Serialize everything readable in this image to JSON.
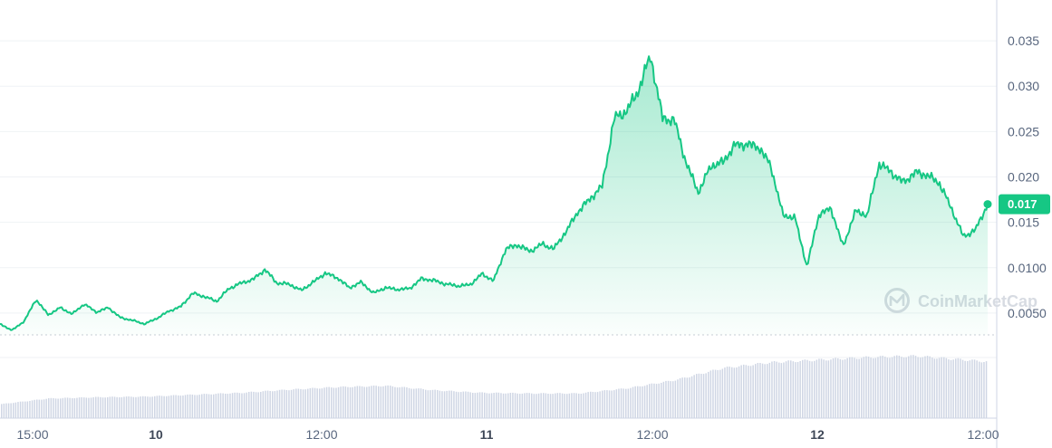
{
  "chart_data": {
    "type": "area",
    "title": "",
    "xlabel": "",
    "ylabel": "",
    "ylim": [
      0.0026,
      0.0385
    ],
    "y_ticks": [
      0.005,
      0.01,
      0.015,
      0.02,
      0.025,
      0.03,
      0.035
    ],
    "y_tick_labels": [
      "0.0050",
      "0.0100",
      "0.015",
      "0.020",
      "0.025",
      "0.030",
      "0.035"
    ],
    "x_ticks": [
      {
        "label": "15:00",
        "bold": false
      },
      {
        "label": "10",
        "bold": true
      },
      {
        "label": "12:00",
        "bold": false
      },
      {
        "label": "11",
        "bold": true
      },
      {
        "label": "12:00",
        "bold": false
      },
      {
        "label": "12",
        "bold": true
      },
      {
        "label": "12:00",
        "bold": false
      }
    ],
    "grid": true,
    "colors": {
      "line": "#16c784",
      "area_top": "#16c784",
      "volume": "#cfd6e4",
      "grid": "#eff2f5",
      "text": "#58667e",
      "baseline_dotted": "#c7ccd5"
    },
    "current_price": {
      "value": 0.017,
      "label": "0.017"
    },
    "watermark": "CoinMarketCap",
    "price_series": {
      "name": "",
      "x_hours": [
        0,
        1,
        2,
        3,
        4,
        5,
        6,
        7,
        8,
        9,
        10,
        11,
        12,
        13,
        14,
        15,
        16,
        17,
        18,
        19,
        20,
        21,
        22,
        23,
        24,
        25,
        26,
        27,
        28,
        29,
        30,
        31,
        32,
        33,
        34,
        35,
        36,
        37,
        38,
        39,
        40,
        41,
        42,
        43,
        44,
        45,
        46,
        47,
        48,
        49,
        50,
        51,
        52,
        53,
        54,
        55,
        56,
        57,
        58,
        59,
        60,
        61,
        62,
        63,
        64,
        65,
        66,
        67,
        68,
        69,
        70,
        71,
        72,
        73,
        74,
        75,
        76,
        77,
        78,
        79,
        80,
        81,
        82
      ],
      "values": [
        0.0038,
        0.0031,
        0.0041,
        0.0065,
        0.0048,
        0.0056,
        0.0049,
        0.006,
        0.0051,
        0.0056,
        0.0045,
        0.0042,
        0.0038,
        0.0044,
        0.0052,
        0.0057,
        0.0072,
        0.0068,
        0.0063,
        0.0077,
        0.0083,
        0.0087,
        0.0098,
        0.0083,
        0.0082,
        0.0075,
        0.0084,
        0.0094,
        0.0089,
        0.0078,
        0.0084,
        0.0072,
        0.0078,
        0.0076,
        0.0077,
        0.0088,
        0.0086,
        0.0082,
        0.008,
        0.0081,
        0.0093,
        0.0086,
        0.0121,
        0.0125,
        0.0118,
        0.0126,
        0.0121,
        0.014,
        0.0162,
        0.0176,
        0.019,
        0.0265,
        0.0272,
        0.0295,
        0.0334,
        0.0265,
        0.0262,
        0.0214,
        0.0183,
        0.0212,
        0.0216,
        0.0235,
        0.0236,
        0.0233,
        0.0212,
        0.0158,
        0.0155,
        0.0101,
        0.0159,
        0.0165,
        0.0123,
        0.0162,
        0.0158,
        0.0215,
        0.0205,
        0.0194,
        0.0205,
        0.0202,
        0.0193,
        0.0165,
        0.0134,
        0.0142,
        0.017
      ]
    },
    "volume_series": {
      "name": "",
      "x_hours": [
        0,
        4,
        8,
        12,
        16,
        20,
        24,
        28,
        32,
        36,
        40,
        44,
        48,
        52,
        56,
        60,
        64,
        68,
        72,
        76,
        80,
        82
      ],
      "values": [
        0.22,
        0.31,
        0.33,
        0.34,
        0.37,
        0.4,
        0.45,
        0.49,
        0.51,
        0.44,
        0.4,
        0.39,
        0.39,
        0.47,
        0.6,
        0.79,
        0.88,
        0.92,
        0.96,
        0.98,
        0.92,
        0.89
      ]
    }
  }
}
